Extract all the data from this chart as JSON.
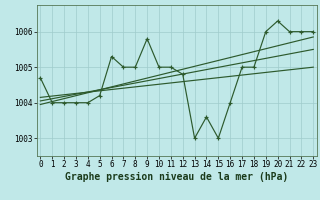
{
  "xlabel": "Graphe pression niveau de la mer (hPa)",
  "bg_color": "#c0e8e8",
  "grid_color": "#a0cccc",
  "line_color": "#2d5a2d",
  "x_values": [
    0,
    1,
    2,
    3,
    4,
    5,
    6,
    7,
    8,
    9,
    10,
    11,
    12,
    13,
    14,
    15,
    16,
    17,
    18,
    19,
    20,
    21,
    22,
    23
  ],
  "y_main": [
    1004.7,
    1004.0,
    1004.0,
    1004.0,
    1004.0,
    1004.2,
    1005.3,
    1005.0,
    1005.0,
    1005.8,
    1005.0,
    1005.0,
    1004.8,
    1003.0,
    1003.6,
    1003.0,
    1004.0,
    1005.0,
    1005.0,
    1006.0,
    1006.3,
    1006.0,
    1006.0,
    1006.0
  ],
  "ylim": [
    1002.5,
    1006.75
  ],
  "xlim": [
    -0.3,
    23.3
  ],
  "yticks": [
    1003,
    1004,
    1005,
    1006
  ],
  "xticks": [
    0,
    1,
    2,
    3,
    4,
    5,
    6,
    7,
    8,
    9,
    10,
    11,
    12,
    13,
    14,
    15,
    16,
    17,
    18,
    19,
    20,
    21,
    22,
    23
  ],
  "tick_fontsize": 5.5,
  "xlabel_fontsize": 7.0,
  "trend_lines": [
    [
      1003.95,
      1005.85
    ],
    [
      1004.05,
      1005.5
    ],
    [
      1004.15,
      1005.0
    ]
  ]
}
